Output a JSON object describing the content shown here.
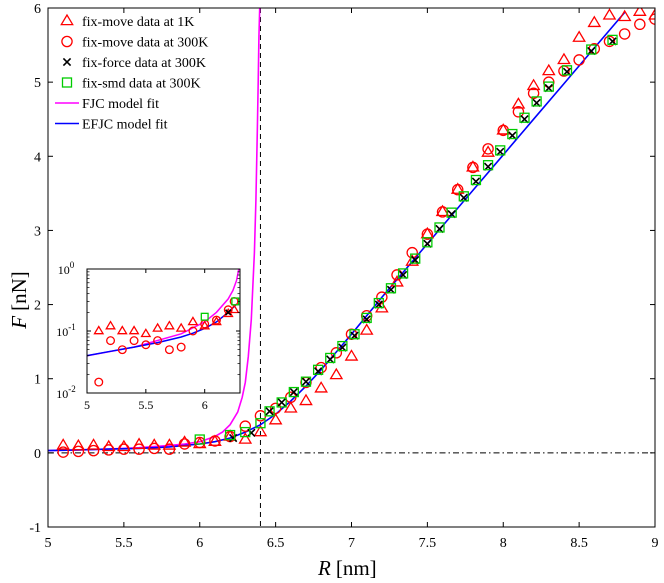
{
  "chart_data": [
    {
      "type": "scatter",
      "xlabel_var": "R",
      "xlabel_unit": "[nm]",
      "ylabel_var": "F",
      "ylabel_unit": "[nN]",
      "xlim": [
        5,
        9
      ],
      "ylim": [
        -1,
        6
      ],
      "xticks": [
        5,
        5.5,
        6,
        6.5,
        7,
        7.5,
        8,
        8.5,
        9
      ],
      "yticks": [
        -1,
        0,
        1,
        2,
        3,
        4,
        5,
        6
      ],
      "grid": false,
      "legend_position": "top-left",
      "reference_lines": [
        {
          "orientation": "vertical",
          "x": 6.4,
          "style": "dashed"
        },
        {
          "orientation": "horizontal",
          "y": 0,
          "style": "dash-dot"
        }
      ],
      "series": [
        {
          "name": "fix-move data at 1K",
          "marker": "triangle",
          "color": "#ff0000",
          "x": [
            5.1,
            5.2,
            5.3,
            5.4,
            5.5,
            5.6,
            5.7,
            5.8,
            5.9,
            6.0,
            6.1,
            6.2,
            6.3,
            6.4,
            6.5,
            6.6,
            6.7,
            6.8,
            6.9,
            7.0,
            7.1,
            7.2,
            7.3,
            7.4,
            7.5,
            7.6,
            7.7,
            7.8,
            7.9,
            8.0,
            8.1,
            8.2,
            8.3,
            8.4,
            8.5,
            8.6,
            8.7,
            8.8,
            8.9,
            9.0
          ],
          "y": [
            0.1,
            0.09,
            0.1,
            0.08,
            0.08,
            0.11,
            0.1,
            0.1,
            0.14,
            0.12,
            0.15,
            0.22,
            0.18,
            0.28,
            0.44,
            0.6,
            0.7,
            0.87,
            1.05,
            1.3,
            1.65,
            1.95,
            2.3,
            2.58,
            2.95,
            3.25,
            3.55,
            3.85,
            4.05,
            4.35,
            4.7,
            4.95,
            5.15,
            5.3,
            5.6,
            5.8,
            5.9,
            5.88,
            5.95,
            5.9
          ]
        },
        {
          "name": "fix-move data at 300K",
          "marker": "circle",
          "color": "#ff0000",
          "x": [
            5.1,
            5.2,
            5.3,
            5.4,
            5.5,
            5.6,
            5.7,
            5.8,
            5.9,
            6.0,
            6.1,
            6.2,
            6.3,
            6.4,
            6.5,
            6.6,
            6.7,
            6.8,
            6.9,
            7.0,
            7.1,
            7.2,
            7.3,
            7.4,
            7.5,
            7.6,
            7.7,
            7.8,
            7.9,
            8.0,
            8.1,
            8.2,
            8.3,
            8.4,
            8.5,
            8.6,
            8.7,
            8.8,
            8.9,
            9.0
          ],
          "y": [
            0.01,
            0.02,
            0.03,
            0.04,
            0.05,
            0.05,
            0.06,
            0.05,
            0.12,
            0.14,
            0.16,
            0.22,
            0.36,
            0.5,
            0.6,
            0.75,
            0.95,
            1.15,
            1.35,
            1.6,
            1.85,
            2.1,
            2.4,
            2.7,
            2.95,
            3.25,
            3.55,
            3.85,
            4.1,
            4.35,
            4.6,
            4.85,
            5.0,
            5.15,
            5.3,
            5.45,
            5.55,
            5.65,
            5.78,
            5.85
          ]
        },
        {
          "name": "fix-force data at 300K",
          "marker": "x",
          "color": "#000000",
          "x": [
            6.22,
            6.34,
            6.46,
            6.54,
            6.62,
            6.7,
            6.78,
            6.86,
            6.94,
            7.02,
            7.1,
            7.18,
            7.26,
            7.34,
            7.42,
            7.5,
            7.58,
            7.66,
            7.74,
            7.82,
            7.9,
            7.98,
            8.06,
            8.14,
            8.22,
            8.3,
            8.42,
            8.58,
            8.72
          ],
          "y": [
            0.2,
            0.27,
            0.56,
            0.68,
            0.82,
            0.96,
            1.1,
            1.26,
            1.42,
            1.58,
            1.8,
            2.0,
            2.2,
            2.4,
            2.6,
            2.82,
            3.02,
            3.22,
            3.44,
            3.66,
            3.86,
            4.06,
            4.28,
            4.5,
            4.72,
            4.92,
            5.14,
            5.42,
            5.55
          ]
        },
        {
          "name": "fix-smd data at 300K",
          "marker": "square",
          "color": "#00cc00",
          "x": [
            6.0,
            6.2,
            6.3,
            6.4,
            6.46,
            6.54,
            6.62,
            6.7,
            6.78,
            6.86,
            6.94,
            7.02,
            7.1,
            7.18,
            7.26,
            7.34,
            7.42,
            7.5,
            7.58,
            7.66,
            7.74,
            7.82,
            7.9,
            7.98,
            8.06,
            8.14,
            8.22,
            8.3,
            8.42,
            8.58,
            8.72
          ],
          "y": [
            0.18,
            0.24,
            0.28,
            0.4,
            0.56,
            0.68,
            0.82,
            0.96,
            1.12,
            1.28,
            1.44,
            1.6,
            1.82,
            2.02,
            2.22,
            2.42,
            2.62,
            2.84,
            3.04,
            3.24,
            3.46,
            3.68,
            3.88,
            4.08,
            4.3,
            4.52,
            4.74,
            4.94,
            5.16,
            5.44,
            5.57
          ]
        },
        {
          "name": "FJC model fit",
          "marker": "line",
          "color": "#ff00ff",
          "x": [
            5.0,
            5.2,
            5.4,
            5.6,
            5.8,
            5.9,
            6.0,
            6.1,
            6.15,
            6.2,
            6.25,
            6.28,
            6.3,
            6.32,
            6.34,
            6.36,
            6.37,
            6.38,
            6.385,
            6.39,
            6.395
          ],
          "y": [
            0.03,
            0.04,
            0.05,
            0.07,
            0.1,
            0.12,
            0.15,
            0.22,
            0.28,
            0.38,
            0.55,
            0.75,
            0.95,
            1.3,
            1.8,
            2.7,
            3.4,
            4.4,
            5.0,
            5.6,
            6.0
          ]
        },
        {
          "name": "EFJC model fit",
          "marker": "line",
          "color": "#0000ff",
          "x": [
            5.0,
            5.2,
            5.4,
            5.6,
            5.8,
            5.9,
            6.0,
            6.1,
            6.2,
            6.3,
            6.4,
            6.5,
            6.6,
            6.7,
            6.8,
            6.9,
            7.0,
            7.2,
            7.4,
            7.6,
            7.8,
            8.0,
            8.2,
            8.4,
            8.6,
            8.8
          ],
          "y": [
            0.03,
            0.04,
            0.05,
            0.06,
            0.08,
            0.1,
            0.12,
            0.15,
            0.2,
            0.28,
            0.38,
            0.52,
            0.7,
            0.9,
            1.12,
            1.36,
            1.6,
            2.1,
            2.58,
            3.06,
            3.54,
            4.02,
            4.5,
            4.98,
            5.46,
            5.94
          ]
        }
      ]
    },
    {
      "type": "scatter",
      "role": "inset",
      "yscale": "log",
      "xlim": [
        5,
        6.3
      ],
      "ylim": [
        0.01,
        1
      ],
      "xticks": [
        5,
        5.5,
        6
      ],
      "xtick_labels": [
        "5",
        "5.5",
        "6"
      ],
      "yticks": [
        0.01,
        0.1,
        1
      ],
      "ytick_labels": [
        {
          "base": "10",
          "exp": "-2"
        },
        {
          "base": "10",
          "exp": "-1"
        },
        {
          "base": "10",
          "exp": "0"
        }
      ],
      "series": [
        {
          "name": "fix-move data at 1K",
          "marker": "triangle",
          "color": "#ff0000",
          "x": [
            5.1,
            5.2,
            5.3,
            5.4,
            5.5,
            5.6,
            5.7,
            5.8,
            5.9,
            6.0,
            6.1,
            6.2,
            6.25
          ],
          "y": [
            0.1,
            0.12,
            0.1,
            0.1,
            0.09,
            0.11,
            0.12,
            0.11,
            0.14,
            0.12,
            0.14,
            0.19,
            0.22
          ]
        },
        {
          "name": "fix-move data at 300K",
          "marker": "circle",
          "color": "#ff0000",
          "x": [
            5.1,
            5.2,
            5.3,
            5.4,
            5.5,
            5.6,
            5.7,
            5.8,
            5.9,
            6.0,
            6.1,
            6.2,
            6.25
          ],
          "y": [
            0.015,
            0.07,
            0.05,
            0.07,
            0.06,
            0.07,
            0.05,
            0.055,
            0.1,
            0.13,
            0.15,
            0.22,
            0.3
          ]
        },
        {
          "name": "fix-force data at 300K",
          "marker": "x",
          "color": "#000000",
          "x": [
            6.2
          ],
          "y": [
            0.2
          ]
        },
        {
          "name": "fix-smd data at 300K",
          "marker": "square",
          "color": "#00cc00",
          "x": [
            6.0,
            6.26
          ],
          "y": [
            0.17,
            0.3
          ]
        },
        {
          "name": "FJC model fit",
          "marker": "line",
          "color": "#ff00ff",
          "x": [
            5.0,
            5.4,
            5.8,
            6.0,
            6.1,
            6.2,
            6.24,
            6.27,
            6.29
          ],
          "y": [
            0.04,
            0.055,
            0.09,
            0.14,
            0.2,
            0.33,
            0.45,
            0.65,
            1.0
          ]
        },
        {
          "name": "EFJC model fit",
          "marker": "line",
          "color": "#0000ff",
          "x": [
            5.0,
            5.2,
            5.4,
            5.6,
            5.8,
            5.9,
            6.0,
            6.1,
            6.2,
            6.27
          ],
          "y": [
            0.04,
            0.047,
            0.055,
            0.065,
            0.08,
            0.092,
            0.11,
            0.14,
            0.2,
            0.27
          ]
        }
      ]
    }
  ]
}
